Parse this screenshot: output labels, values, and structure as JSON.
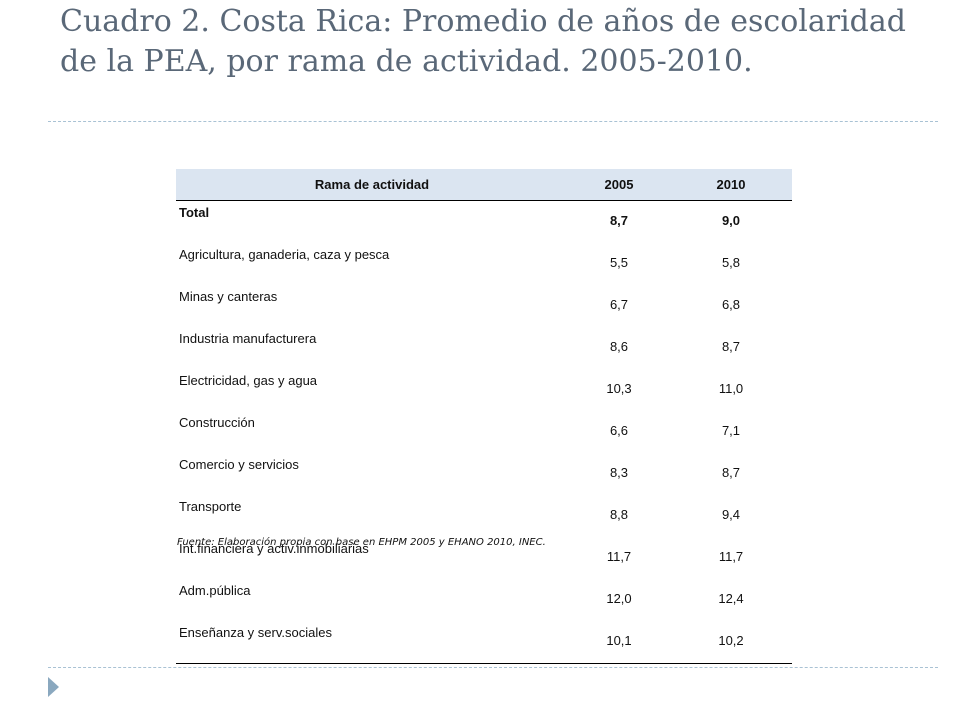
{
  "slide": {
    "title": "Cuadro 2. Costa Rica: Promedio de años de escolaridad de la PEA, por rama de actividad. 2005-2010."
  },
  "table": {
    "headers": [
      "Rama de actividad",
      "2005",
      "2010"
    ],
    "rows": [
      {
        "label": "Total",
        "v2005": "8,7",
        "v2010": "9,0"
      },
      {
        "label": "Agricultura, ganaderia, caza y pesca",
        "v2005": "5,5",
        "v2010": "5,8"
      },
      {
        "label": "Minas y canteras",
        "v2005": "6,7",
        "v2010": "6,8"
      },
      {
        "label": "Industria manufacturera",
        "v2005": "8,6",
        "v2010": "8,7"
      },
      {
        "label": "Electricidad, gas y agua",
        "v2005": "10,3",
        "v2010": "11,0"
      },
      {
        "label": "Construcción",
        "v2005": "6,6",
        "v2010": "7,1"
      },
      {
        "label": "Comercio y servicios",
        "v2005": "8,3",
        "v2010": "8,7"
      },
      {
        "label": "Transporte",
        "v2005": "8,8",
        "v2010": "9,4"
      },
      {
        "label": "Int.financiera y activ.inmobiliarias",
        "v2005": "11,7",
        "v2010": "11,7"
      },
      {
        "label": "Adm.pública",
        "v2005": "12,0",
        "v2010": "12,4"
      },
      {
        "label": "Enseñanza y serv.sociales",
        "v2005": "10,1",
        "v2010": "10,2"
      }
    ],
    "source": "Fuente: Elaboración propia con base en EHPM 2005  y EHANO 2010,  INEC."
  }
}
